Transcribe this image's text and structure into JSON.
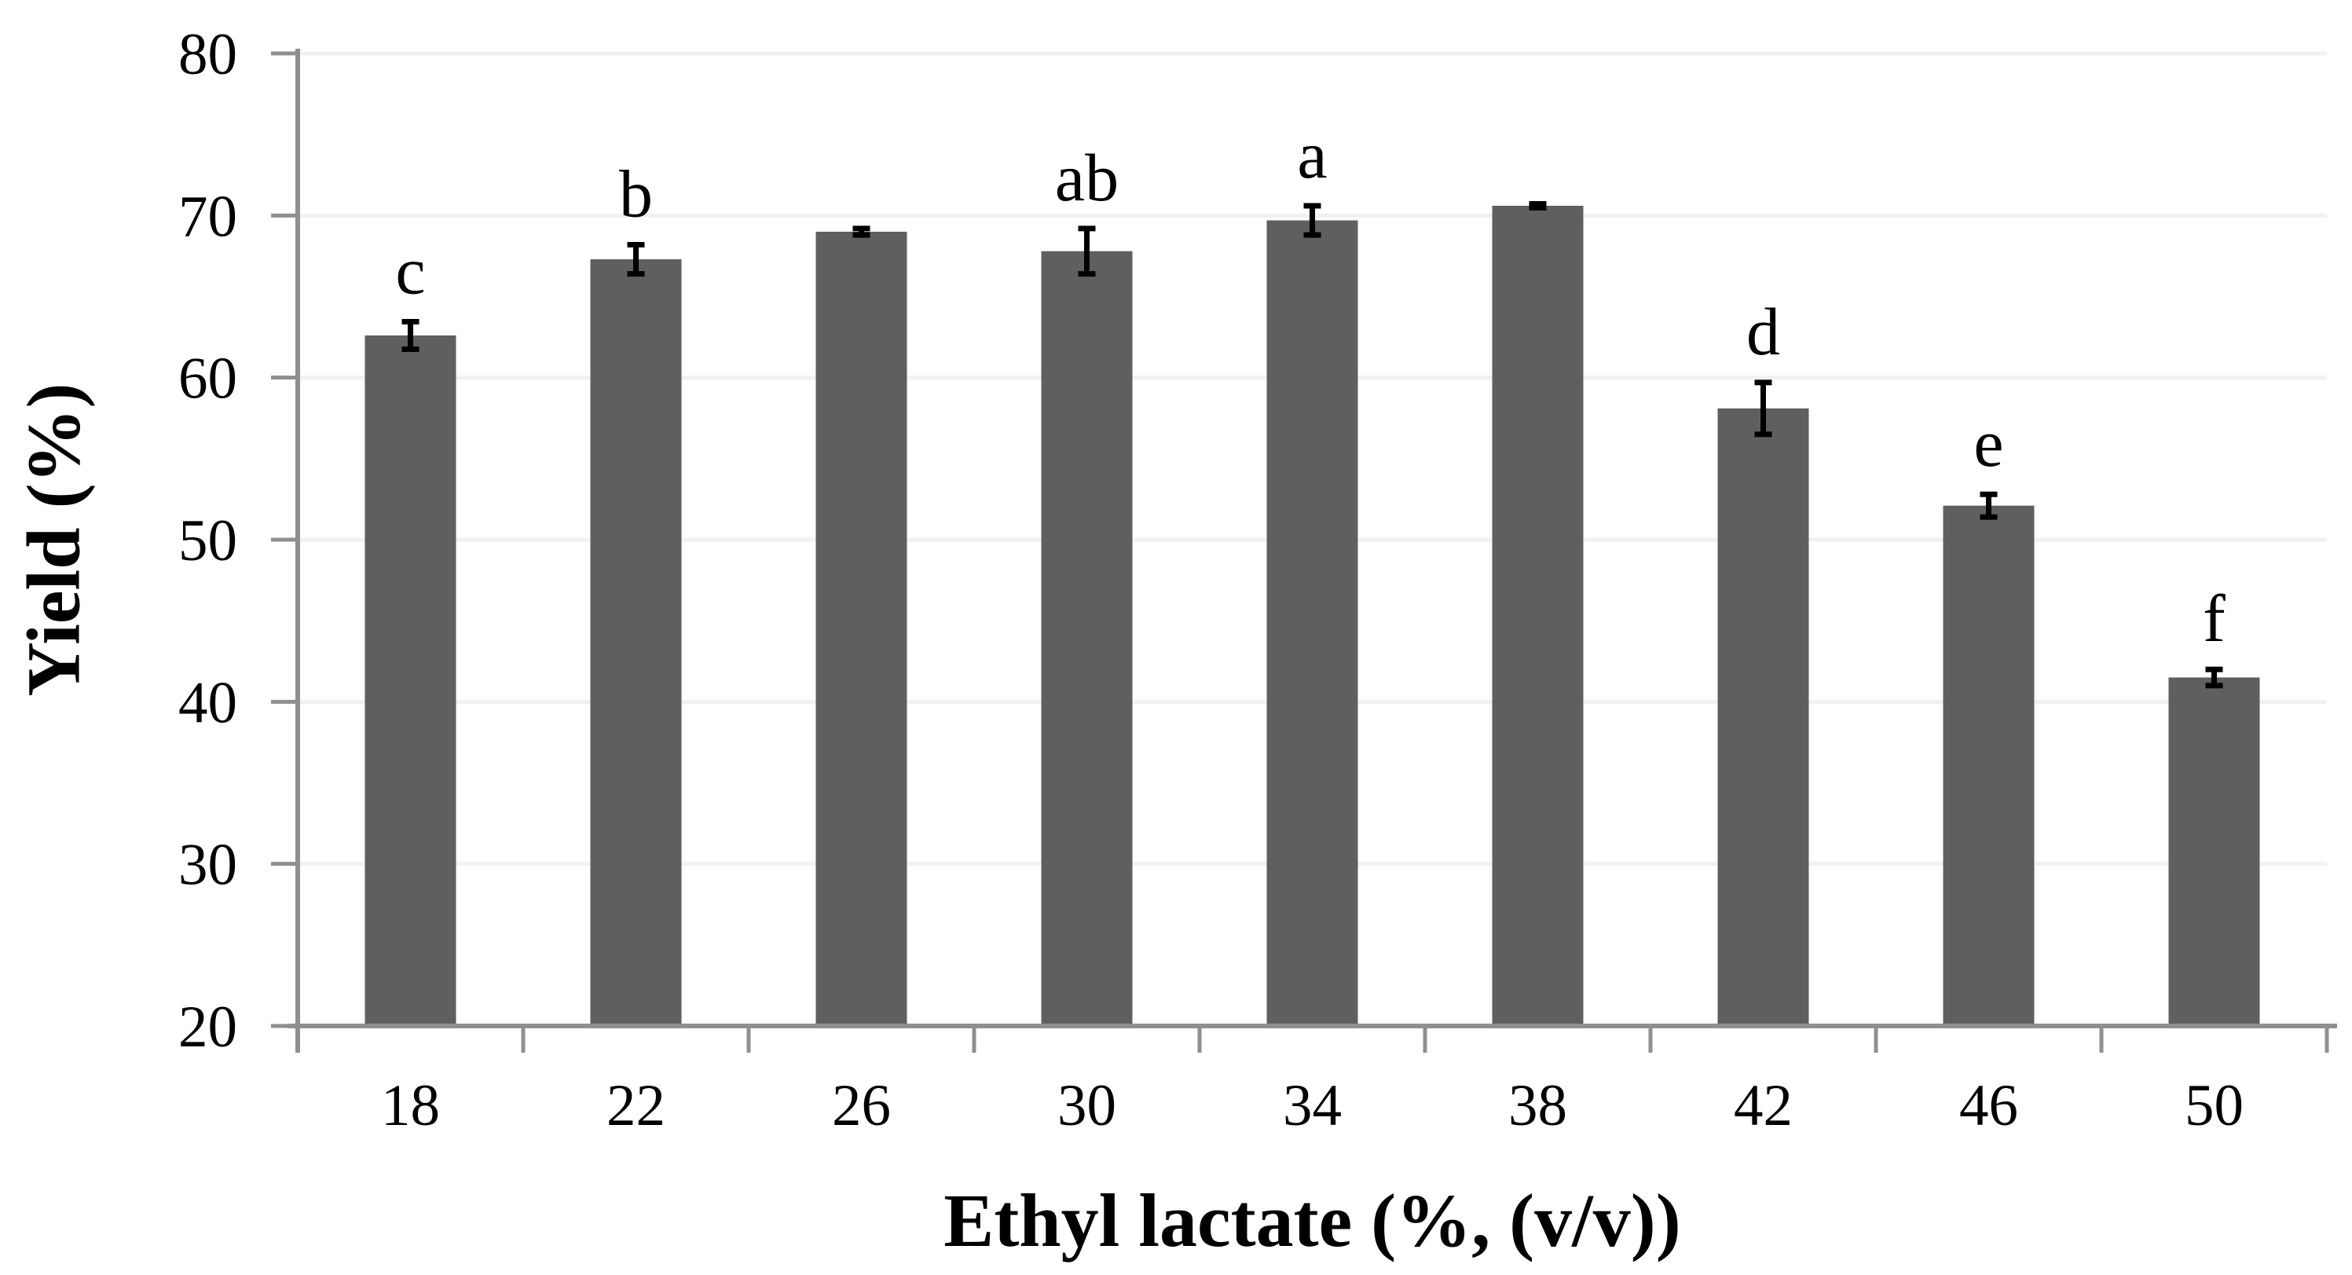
{
  "chart_data": {
    "type": "bar",
    "title": "",
    "xlabel": "Ethyl lactate (%, (v/v))",
    "ylabel": "Yield (%)",
    "categories": [
      "18",
      "22",
      "26",
      "30",
      "34",
      "38",
      "42",
      "46",
      "50"
    ],
    "values": [
      62.6,
      67.3,
      69.0,
      67.8,
      69.7,
      70.6,
      58.1,
      52.1,
      41.5
    ],
    "errors": [
      0.85,
      0.9,
      0.2,
      1.4,
      0.9,
      0.12,
      1.6,
      0.7,
      0.5
    ],
    "sig_letters": [
      "c",
      "b",
      "",
      "ab",
      "a",
      "",
      "d",
      "e",
      "f"
    ],
    "ylim": [
      20,
      80
    ],
    "yticks": [
      20,
      30,
      40,
      50,
      60,
      70,
      80
    ],
    "grid": true,
    "legend_position": "none",
    "bar_color": "#5f5f5f",
    "error_color": "#000000",
    "gridline_color": "#f1f1f1",
    "axis_color": "#8f8f8f",
    "text_color": "#000000"
  }
}
